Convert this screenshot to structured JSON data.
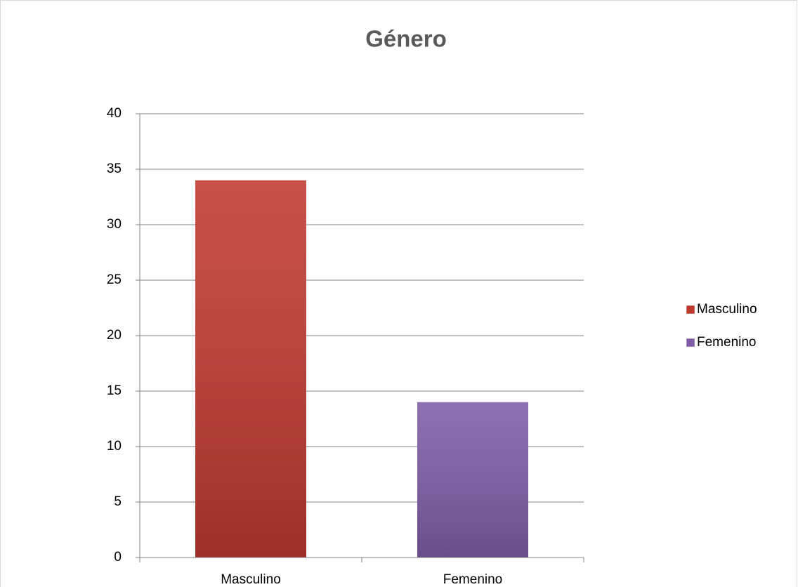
{
  "chart_data": {
    "type": "bar",
    "title": "Género",
    "categories": [
      "Masculino",
      "Femenino"
    ],
    "values": [
      34,
      14
    ],
    "colors": [
      "#c0392f",
      "#7e5ca8"
    ],
    "ylim": [
      0,
      40
    ],
    "yticks": [
      0,
      5,
      10,
      15,
      20,
      25,
      30,
      35,
      40
    ],
    "grid": true,
    "legend": "right"
  }
}
